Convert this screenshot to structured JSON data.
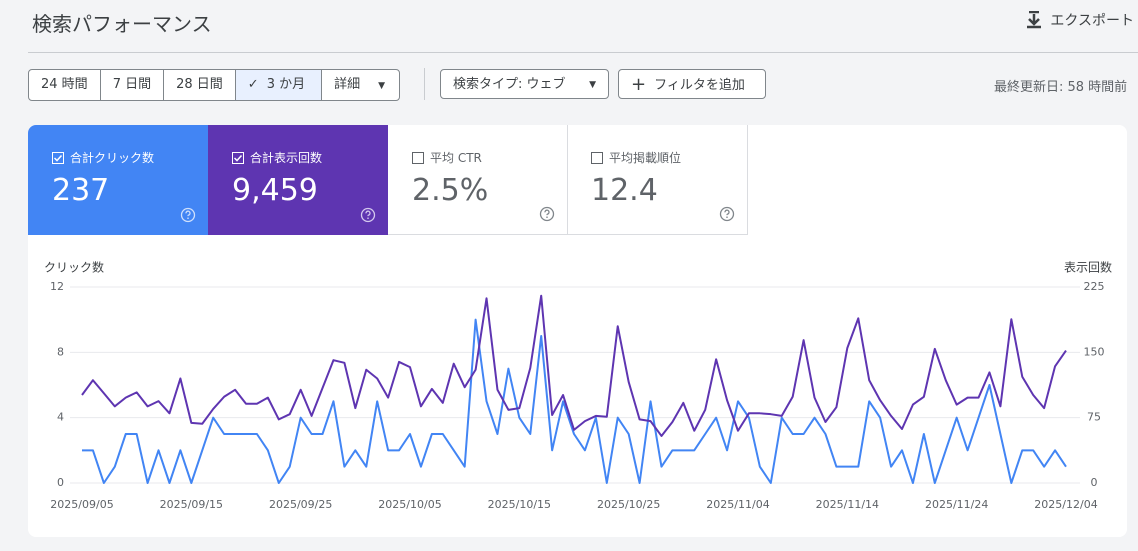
{
  "header": {
    "title": "検索パフォーマンス",
    "export": "エクスポート"
  },
  "toolbar": {
    "ranges": [
      "24 時間",
      "7 日間",
      "28 日間",
      "3 か月",
      "詳細"
    ],
    "search_type": "検索タイプ: ウェブ",
    "add_filter": "フィルタを追加",
    "updated": "最終更新日: 58 時間前"
  },
  "metrics": [
    {
      "value": "237"
    },
    {
      "value": "9,459"
    },
    {
      "label": "平均 CTR",
      "value": "2.5%"
    },
    {
      "label": "平均掲載順位",
      "value": "12.4"
    }
  ],
  "chart_data": {
    "type": "line",
    "ylabel": "クリック数",
    "y2label": "表示回数",
    "x": [
      "2025/09/05",
      "2025/09/06",
      "2025/09/07",
      "2025/09/08",
      "2025/09/09",
      "2025/09/10",
      "2025/09/11",
      "2025/09/12",
      "2025/09/13",
      "2025/09/14",
      "2025/09/15",
      "2025/09/16",
      "2025/09/17",
      "2025/09/18",
      "2025/09/19",
      "2025/09/20",
      "2025/09/21",
      "2025/09/22",
      "2025/09/23",
      "2025/09/24",
      "2025/09/25",
      "2025/09/26",
      "2025/09/27",
      "2025/09/28",
      "2025/09/29",
      "2025/09/30",
      "2025/10/01",
      "2025/10/02",
      "2025/10/03",
      "2025/10/04",
      "2025/10/05",
      "2025/10/06",
      "2025/10/07",
      "2025/10/08",
      "2025/10/09",
      "2025/10/10",
      "2025/10/11",
      "2025/10/12",
      "2025/10/13",
      "2025/10/14",
      "2025/10/15",
      "2025/10/16",
      "2025/10/17",
      "2025/10/18",
      "2025/10/19",
      "2025/10/20",
      "2025/10/21",
      "2025/10/22",
      "2025/10/23",
      "2025/10/24",
      "2025/10/25",
      "2025/10/26",
      "2025/10/27",
      "2025/10/28",
      "2025/10/29",
      "2025/10/30",
      "2025/10/31",
      "2025/11/01",
      "2025/11/02",
      "2025/11/03",
      "2025/11/04",
      "2025/11/05",
      "2025/11/06",
      "2025/11/07",
      "2025/11/08",
      "2025/11/09",
      "2025/11/10",
      "2025/11/11",
      "2025/11/12",
      "2025/11/13",
      "2025/11/14",
      "2025/11/15",
      "2025/11/16",
      "2025/11/17",
      "2025/11/18",
      "2025/11/19",
      "2025/11/20",
      "2025/11/21",
      "2025/11/22",
      "2025/11/23",
      "2025/11/24",
      "2025/11/25",
      "2025/11/26",
      "2025/11/27",
      "2025/11/28",
      "2025/11/29",
      "2025/11/30",
      "2025/12/01",
      "2025/12/02",
      "2025/12/03",
      "2025/12/04"
    ],
    "xticks": [
      "2025/09/05",
      "2025/09/15",
      "2025/09/25",
      "2025/10/05",
      "2025/10/15",
      "2025/10/25",
      "2025/11/04",
      "2025/11/14",
      "2025/11/24",
      "2025/12/04"
    ],
    "ylim": [
      0,
      12
    ],
    "yticks": [
      0,
      4,
      8,
      12
    ],
    "y2lim": [
      0,
      225
    ],
    "y2ticks": [
      0,
      75,
      150,
      225
    ],
    "grid": true,
    "series": [
      {
        "name": "合計クリック数",
        "color": "#4285f4",
        "values": [
          2,
          2,
          0,
          1,
          3,
          3,
          0,
          2,
          0,
          2,
          0,
          2,
          4,
          3,
          3,
          3,
          3,
          2,
          0,
          1,
          4,
          3,
          3,
          5,
          1,
          2,
          1,
          5,
          2,
          2,
          3,
          1,
          3,
          3,
          2,
          1,
          10,
          5,
          3,
          7,
          4,
          3,
          9,
          2,
          5,
          3,
          2,
          4,
          0,
          4,
          3,
          0,
          5,
          1,
          2,
          2,
          2,
          3,
          4,
          2,
          5,
          4,
          1,
          0,
          4,
          3,
          3,
          4,
          3,
          1,
          1,
          1,
          5,
          4,
          1,
          2,
          0,
          3,
          0,
          2,
          4,
          2,
          4,
          6,
          3,
          0,
          2,
          2,
          1,
          2,
          1
        ]
      },
      {
        "name": "合計表示回数",
        "color": "#5e35b1",
        "axis": "y2",
        "values": [
          101,
          118,
          103,
          88,
          98,
          104,
          88,
          94,
          80,
          120,
          69,
          68,
          85,
          99,
          107,
          91,
          91,
          98,
          73,
          79,
          107,
          77,
          109,
          141,
          138,
          86,
          130,
          120,
          98,
          139,
          133,
          88,
          108,
          92,
          137,
          110,
          130,
          212,
          107,
          84,
          86,
          132,
          215,
          78,
          101,
          61,
          71,
          77,
          76,
          180,
          116,
          73,
          71,
          54,
          70,
          92,
          60,
          84,
          142,
          95,
          60,
          80,
          80,
          79,
          77,
          99,
          164,
          98,
          70,
          87,
          155,
          189,
          118,
          95,
          77,
          62,
          90,
          99,
          154,
          118,
          90,
          98,
          98,
          127,
          88,
          188,
          122,
          101,
          86,
          134,
          152
        ]
      }
    ]
  }
}
